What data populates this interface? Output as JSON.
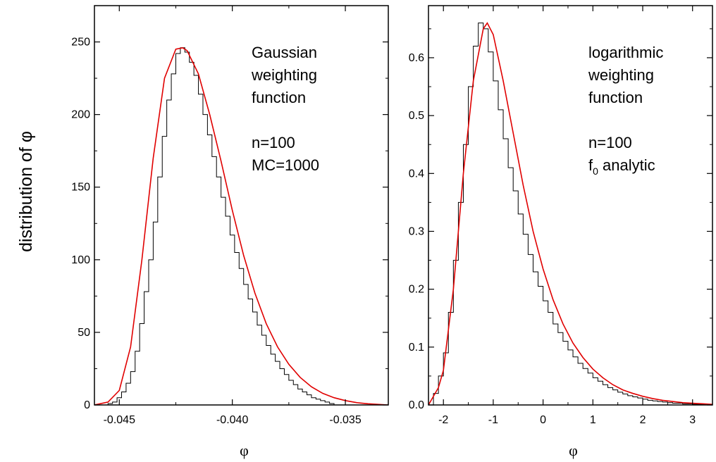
{
  "ylabel": "distribution of φ",
  "chart_data": [
    {
      "type": "line",
      "xlabel": "φ",
      "xlim": [
        -0.0461,
        -0.0331
      ],
      "ylim": [
        0,
        275
      ],
      "xticks": [
        -0.045,
        -0.04,
        -0.035
      ],
      "xtick_labels": [
        "-0.045",
        "-0.040",
        "-0.035"
      ],
      "yticks": [
        0,
        50,
        100,
        150,
        200,
        250
      ],
      "ytick_labels": [
        "0",
        "50",
        "100",
        "150",
        "200",
        "250"
      ],
      "annotation": [
        "Gaussian",
        "weighting",
        "function",
        "",
        "n=100",
        "MC=1000"
      ],
      "histogram": {
        "bin_width": 0.0002,
        "x_start": -0.0455,
        "values": [
          1,
          2,
          5,
          9,
          15,
          23,
          37,
          56,
          78,
          100,
          126,
          157,
          185,
          210,
          228,
          242,
          246,
          243,
          236,
          227,
          214,
          200,
          186,
          171,
          157,
          143,
          130,
          117,
          105,
          94,
          83,
          73,
          64,
          55,
          48,
          41,
          35,
          30,
          25,
          21,
          17,
          14,
          11,
          9,
          7,
          5,
          4,
          3,
          2,
          1
        ]
      },
      "fit_curve": {
        "x": [
          -0.0461,
          -0.0455,
          -0.045,
          -0.0445,
          -0.044,
          -0.0435,
          -0.043,
          -0.0425,
          -0.0422,
          -0.042,
          -0.0415,
          -0.041,
          -0.0405,
          -0.04,
          -0.0395,
          -0.039,
          -0.0385,
          -0.038,
          -0.0375,
          -0.037,
          -0.0365,
          -0.036,
          -0.0355,
          -0.035,
          -0.0345,
          -0.034,
          -0.0331
        ],
        "y": [
          0,
          2,
          10,
          40,
          100,
          170,
          225,
          245,
          246,
          244,
          228,
          200,
          168,
          134,
          103,
          77,
          56,
          40,
          28,
          19,
          12.5,
          8,
          5,
          3,
          1.6,
          0.8,
          0
        ]
      }
    },
    {
      "type": "line",
      "xlabel": "φ",
      "xlim": [
        -2.3,
        3.4
      ],
      "ylim": [
        0,
        0.69
      ],
      "xticks": [
        -2,
        -1,
        0,
        1,
        2,
        3
      ],
      "xtick_labels": [
        "-2",
        "-1",
        "0",
        "1",
        "2",
        "3"
      ],
      "yticks": [
        0,
        0.1,
        0.2,
        0.3,
        0.4,
        0.5,
        0.6
      ],
      "ytick_labels": [
        "0.0",
        "0.1",
        "0.2",
        "0.3",
        "0.4",
        "0.5",
        "0.6"
      ],
      "annotation": [
        "logarithmic",
        "weighting",
        "function",
        "",
        "n=100",
        "f",
        "0",
        " analytic"
      ],
      "histogram": {
        "bin_width": 0.1,
        "x_start": -2.2,
        "values": [
          0.02,
          0.05,
          0.09,
          0.16,
          0.25,
          0.35,
          0.45,
          0.55,
          0.62,
          0.66,
          0.65,
          0.61,
          0.56,
          0.51,
          0.46,
          0.41,
          0.37,
          0.33,
          0.295,
          0.26,
          0.23,
          0.205,
          0.18,
          0.16,
          0.14,
          0.125,
          0.11,
          0.095,
          0.083,
          0.072,
          0.063,
          0.055,
          0.047,
          0.041,
          0.035,
          0.03,
          0.026,
          0.022,
          0.019,
          0.016,
          0.014,
          0.012,
          0.01,
          0.008,
          0.007,
          0.006,
          0.005,
          0.004,
          0.003,
          0.003,
          0.002,
          0.002,
          0.001,
          0.001,
          0.001
        ]
      },
      "fit_curve": {
        "x": [
          -2.3,
          -2.1,
          -2.0,
          -1.8,
          -1.6,
          -1.4,
          -1.2,
          -1.12,
          -1.0,
          -0.8,
          -0.6,
          -0.4,
          -0.2,
          0.0,
          0.2,
          0.4,
          0.6,
          0.8,
          1.0,
          1.2,
          1.4,
          1.6,
          1.8,
          2.0,
          2.2,
          2.4,
          2.6,
          2.8,
          3.0,
          3.2,
          3.4
        ],
        "y": [
          0.0,
          0.03,
          0.06,
          0.2,
          0.4,
          0.56,
          0.65,
          0.66,
          0.64,
          0.56,
          0.47,
          0.38,
          0.3,
          0.235,
          0.182,
          0.14,
          0.107,
          0.082,
          0.062,
          0.047,
          0.035,
          0.026,
          0.02,
          0.015,
          0.011,
          0.008,
          0.006,
          0.004,
          0.003,
          0.002,
          0.001
        ]
      }
    }
  ]
}
